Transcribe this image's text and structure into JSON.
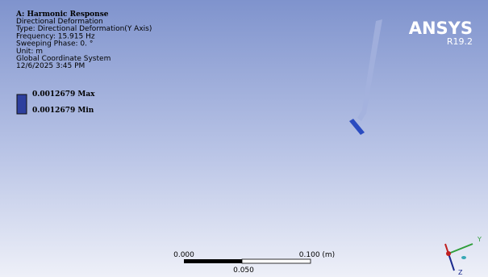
{
  "header": {
    "title": "A: Harmonic Response",
    "lines": [
      "Directional Deformation",
      "Type: Directional Deformation(Y Axis)",
      "Frequency: 15.915 Hz",
      "Sweeping Phase: 0. °",
      "Unit: m",
      "Global Coordinate System",
      "12/6/2025 3:45 PM"
    ]
  },
  "legend": {
    "max": "0.0012679 Max",
    "min": "0.0012679 Min"
  },
  "logo": {
    "name": "ANSYS",
    "version": "R19.2"
  },
  "scale_bar": {
    "left": "0.000",
    "right": "0.100 (m)",
    "middle": "0.050"
  },
  "triad": {
    "y": "Y",
    "z": "Z"
  }
}
